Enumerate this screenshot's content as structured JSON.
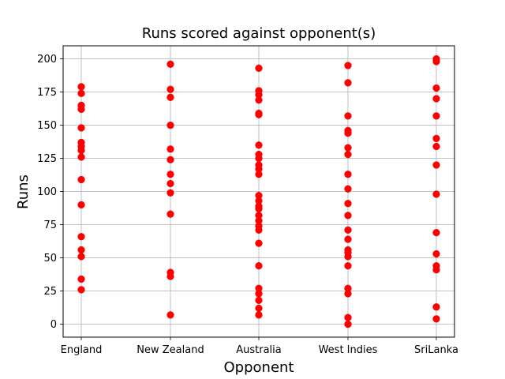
{
  "chart_data": {
    "type": "scatter",
    "title": "Runs scored against opponent(s)",
    "xlabel": "Opponent",
    "ylabel": "Runs",
    "categories": [
      "England",
      "New Zealand",
      "Australia",
      "West Indies",
      "SriLanka"
    ],
    "ylim": [
      -10,
      210
    ],
    "yticks": [
      0,
      25,
      50,
      75,
      100,
      125,
      150,
      175,
      200
    ],
    "grid": true,
    "marker_color": "#ff0000",
    "points": [
      {
        "x": "England",
        "y": 179
      },
      {
        "x": "England",
        "y": 174
      },
      {
        "x": "England",
        "y": 165
      },
      {
        "x": "England",
        "y": 162
      },
      {
        "x": "England",
        "y": 148
      },
      {
        "x": "England",
        "y": 137
      },
      {
        "x": "England",
        "y": 134
      },
      {
        "x": "England",
        "y": 131
      },
      {
        "x": "England",
        "y": 126
      },
      {
        "x": "England",
        "y": 109
      },
      {
        "x": "England",
        "y": 90
      },
      {
        "x": "England",
        "y": 66
      },
      {
        "x": "England",
        "y": 56
      },
      {
        "x": "England",
        "y": 51
      },
      {
        "x": "England",
        "y": 34
      },
      {
        "x": "England",
        "y": 26
      },
      {
        "x": "New Zealand",
        "y": 196
      },
      {
        "x": "New Zealand",
        "y": 177
      },
      {
        "x": "New Zealand",
        "y": 171
      },
      {
        "x": "New Zealand",
        "y": 150
      },
      {
        "x": "New Zealand",
        "y": 132
      },
      {
        "x": "New Zealand",
        "y": 124
      },
      {
        "x": "New Zealand",
        "y": 113
      },
      {
        "x": "New Zealand",
        "y": 106
      },
      {
        "x": "New Zealand",
        "y": 99
      },
      {
        "x": "New Zealand",
        "y": 83
      },
      {
        "x": "New Zealand",
        "y": 39
      },
      {
        "x": "New Zealand",
        "y": 36
      },
      {
        "x": "New Zealand",
        "y": 7
      },
      {
        "x": "Australia",
        "y": 193
      },
      {
        "x": "Australia",
        "y": 176
      },
      {
        "x": "Australia",
        "y": 173
      },
      {
        "x": "Australia",
        "y": 169
      },
      {
        "x": "Australia",
        "y": 159
      },
      {
        "x": "Australia",
        "y": 158
      },
      {
        "x": "Australia",
        "y": 135
      },
      {
        "x": "Australia",
        "y": 128
      },
      {
        "x": "Australia",
        "y": 125
      },
      {
        "x": "Australia",
        "y": 120
      },
      {
        "x": "Australia",
        "y": 117
      },
      {
        "x": "Australia",
        "y": 113
      },
      {
        "x": "Australia",
        "y": 97
      },
      {
        "x": "Australia",
        "y": 93
      },
      {
        "x": "Australia",
        "y": 89
      },
      {
        "x": "Australia",
        "y": 87
      },
      {
        "x": "Australia",
        "y": 82
      },
      {
        "x": "Australia",
        "y": 78
      },
      {
        "x": "Australia",
        "y": 74
      },
      {
        "x": "Australia",
        "y": 71
      },
      {
        "x": "Australia",
        "y": 61
      },
      {
        "x": "Australia",
        "y": 44
      },
      {
        "x": "Australia",
        "y": 27
      },
      {
        "x": "Australia",
        "y": 23
      },
      {
        "x": "Australia",
        "y": 18
      },
      {
        "x": "Australia",
        "y": 12
      },
      {
        "x": "Australia",
        "y": 7
      },
      {
        "x": "West Indies",
        "y": 195
      },
      {
        "x": "West Indies",
        "y": 182
      },
      {
        "x": "West Indies",
        "y": 157
      },
      {
        "x": "West Indies",
        "y": 146
      },
      {
        "x": "West Indies",
        "y": 144
      },
      {
        "x": "West Indies",
        "y": 133
      },
      {
        "x": "West Indies",
        "y": 128
      },
      {
        "x": "West Indies",
        "y": 113
      },
      {
        "x": "West Indies",
        "y": 102
      },
      {
        "x": "West Indies",
        "y": 91
      },
      {
        "x": "West Indies",
        "y": 82
      },
      {
        "x": "West Indies",
        "y": 71
      },
      {
        "x": "West Indies",
        "y": 64
      },
      {
        "x": "West Indies",
        "y": 56
      },
      {
        "x": "West Indies",
        "y": 54
      },
      {
        "x": "West Indies",
        "y": 51
      },
      {
        "x": "West Indies",
        "y": 44
      },
      {
        "x": "West Indies",
        "y": 27
      },
      {
        "x": "West Indies",
        "y": 23
      },
      {
        "x": "West Indies",
        "y": 5
      },
      {
        "x": "West Indies",
        "y": 0
      },
      {
        "x": "SriLanka",
        "y": 200
      },
      {
        "x": "SriLanka",
        "y": 198
      },
      {
        "x": "SriLanka",
        "y": 178
      },
      {
        "x": "SriLanka",
        "y": 170
      },
      {
        "x": "SriLanka",
        "y": 157
      },
      {
        "x": "SriLanka",
        "y": 140
      },
      {
        "x": "SriLanka",
        "y": 134
      },
      {
        "x": "SriLanka",
        "y": 120
      },
      {
        "x": "SriLanka",
        "y": 98
      },
      {
        "x": "SriLanka",
        "y": 69
      },
      {
        "x": "SriLanka",
        "y": 53
      },
      {
        "x": "SriLanka",
        "y": 44
      },
      {
        "x": "SriLanka",
        "y": 41
      },
      {
        "x": "SriLanka",
        "y": 13
      },
      {
        "x": "SriLanka",
        "y": 4
      }
    ]
  }
}
